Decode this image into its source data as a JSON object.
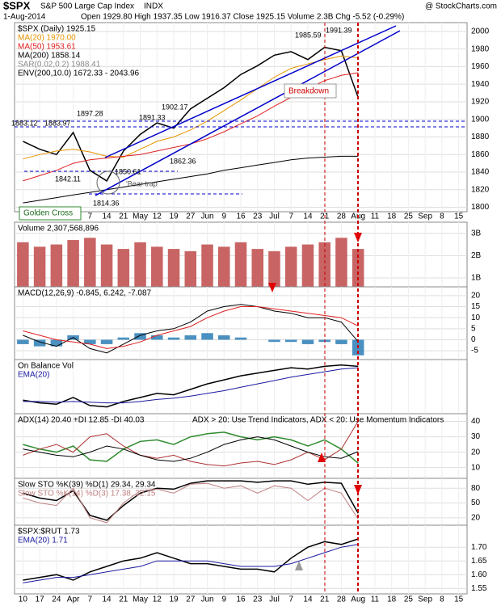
{
  "header": {
    "symbol": "$SPX",
    "name": "S&P 500 Large Cap Index",
    "exchange": "INDX",
    "brand": "@ StockCharts.com",
    "date": "1-Aug-2014",
    "quote": "Open 1929.80  High 1937.35  Low 1916.37  Close 1925.15  Volume 2.3B  Chg -5.52 (-0.29%)"
  },
  "chart_data": [
    {
      "type": "line",
      "categories": [
        "10",
        "17",
        "24",
        "Apr",
        "7",
        "14",
        "21",
        "May",
        "12",
        "19",
        "27",
        "Jun",
        "9",
        "16",
        "23",
        "Jul",
        "7",
        "14",
        "21",
        "28",
        "Aug",
        "11",
        "18",
        "25",
        "Sep",
        "8",
        "15"
      ],
      "ylim": [
        1795,
        2010
      ],
      "yticks": [
        1800,
        1820,
        1840,
        1860,
        1880,
        1900,
        1920,
        1940,
        1960,
        1980,
        2000
      ],
      "grid": true,
      "series": [
        {
          "name": "$SPX (Daily) 1925.15",
          "color": "#000000",
          "values": [
            1875,
            1866,
            1860,
            1885,
            1842,
            1830,
            1864,
            1883,
            1896,
            1890,
            1912,
            1924,
            1936,
            1951,
            1961,
            1973,
            1977,
            1968,
            1982,
            1978,
            1925,
            null,
            null,
            null,
            null,
            null,
            null
          ]
        },
        {
          "name": "MA(20) 1970.00",
          "color": "#e69500",
          "values": [
            1855,
            1860,
            1864,
            1866,
            1863,
            1858,
            1857,
            1866,
            1875,
            1880,
            1888,
            1898,
            1910,
            1922,
            1935,
            1948,
            1958,
            1963,
            1968,
            1972,
            1970,
            null,
            null,
            null,
            null,
            null,
            null
          ]
        },
        {
          "name": "MA(50) 1953.61",
          "color": "#e02020",
          "values": [
            1830,
            1836,
            1842,
            1850,
            1854,
            1856,
            1858,
            1860,
            1864,
            1868,
            1872,
            1878,
            1886,
            1895,
            1904,
            1915,
            1925,
            1935,
            1944,
            1950,
            1953,
            null,
            null,
            null,
            null,
            null,
            null
          ]
        },
        {
          "name": "MA(200) 1858.14",
          "color": "#000000",
          "values": [
            1805,
            1808,
            1811,
            1814,
            1817,
            1820,
            1823,
            1826,
            1829,
            1832,
            1835,
            1838,
            1842,
            1845,
            1848,
            1851,
            1854,
            1856,
            1857,
            1858,
            1858,
            null,
            null,
            null,
            null,
            null,
            null
          ]
        }
      ],
      "overlays": [
        {
          "name": "SAR(0.02,0.2) 1988.41",
          "color": "#888888"
        },
        {
          "name": "ENV(200,10.0) 1672.33 - 2043.96",
          "color": "#000000"
        }
      ],
      "annotations": [
        "1985.59",
        "1991.39",
        "1897.28",
        "1902.17",
        "1891.33",
        "1883.12",
        "1883.97",
        "1842.11",
        "1850.61",
        "1862.36",
        "1814.36",
        "Breakdown",
        "'Bear trap'",
        "Golden Cross"
      ]
    },
    {
      "type": "bar",
      "title": "Volume 2,307,568,896",
      "ylim": [
        0.6,
        3.5
      ],
      "yticks": [
        {
          "value": 1,
          "label": "1B"
        },
        {
          "value": 2,
          "label": "2B"
        },
        {
          "value": 3,
          "label": "3B"
        }
      ],
      "grid": true,
      "series": [
        {
          "color": "#c86464",
          "kind": "bar",
          "values": [
            2.6,
            2.4,
            2.5,
            2.7,
            2.8,
            2.5,
            2.3,
            2.6,
            2.4,
            2.3,
            2.2,
            2.5,
            2.4,
            2.6,
            2.3,
            2.2,
            2.4,
            2.5,
            2.6,
            2.8,
            2.3,
            null,
            null,
            null,
            null,
            null,
            null
          ]
        }
      ]
    },
    {
      "type": "line",
      "title": "MACD(12,26,9) -0.845, 6.242, -7.087",
      "ylim": [
        -9,
        24
      ],
      "yticks": [
        -5,
        0,
        5,
        10,
        15,
        20
      ],
      "grid": true,
      "series": [
        {
          "color": "#4a90c0",
          "kind": "bar",
          "values": [
            -2,
            -3,
            -3,
            2,
            -2,
            -2,
            1,
            3,
            2,
            1,
            2,
            3,
            2,
            1,
            0,
            -1,
            -1,
            -2,
            -1,
            -2,
            -7.087,
            null,
            null,
            null,
            null,
            null,
            null
          ]
        },
        {
          "color": "#000000",
          "values": [
            2,
            -1,
            -3,
            1,
            -4,
            -6,
            -2,
            2,
            4,
            5,
            8,
            13,
            15,
            16,
            15,
            13,
            12,
            10,
            10,
            8,
            -0.845,
            null,
            null,
            null,
            null,
            null,
            null
          ]
        },
        {
          "color": "#e02020",
          "values": [
            4,
            2,
            0,
            -1,
            -2,
            -4,
            -3,
            -1,
            2,
            4,
            6,
            10,
            13,
            15,
            15,
            14,
            13,
            12,
            11,
            10,
            6.242,
            null,
            null,
            null,
            null,
            null,
            null
          ]
        }
      ]
    },
    {
      "type": "line",
      "ylim": [
        0,
        40
      ],
      "yticks": [],
      "grid": false,
      "series": [
        {
          "name": "On Balance Vol",
          "color": "#000000",
          "values": [
            10,
            8,
            7,
            12,
            6,
            5,
            9,
            12,
            15,
            14,
            18,
            22,
            25,
            28,
            30,
            32,
            34,
            33,
            35,
            36,
            35,
            null,
            null,
            null,
            null,
            null,
            null
          ]
        },
        {
          "name": "EMA(20)",
          "color": "#1a1aa0",
          "values": [
            9,
            9,
            8.5,
            9,
            8.5,
            8,
            8,
            9,
            10.5,
            11.5,
            13,
            15,
            17,
            19.5,
            22,
            24.5,
            27,
            29,
            31,
            33,
            34,
            null,
            null,
            null,
            null,
            null,
            null
          ]
        }
      ]
    },
    {
      "type": "line",
      "title": "ADX(14) 20.40  +DI 12.85  -DI 40.03",
      "note": "ADX > 20: Use Trend Indicators, ADX < 20: Use Momentum Indicators",
      "ylim": [
        3,
        45
      ],
      "yticks": [
        10,
        20,
        30,
        40
      ],
      "grid": true,
      "series": [
        {
          "color": "#2e8b2e",
          "values": [
            25,
            22,
            20,
            24,
            15,
            14,
            22,
            27,
            28,
            25,
            30,
            32,
            33,
            30,
            28,
            30,
            28,
            24,
            28,
            22,
            12.85,
            null,
            null,
            null,
            null,
            null,
            null
          ]
        },
        {
          "color": "#b03030",
          "values": [
            18,
            22,
            25,
            20,
            30,
            32,
            24,
            18,
            16,
            18,
            14,
            12,
            11,
            13,
            14,
            12,
            15,
            20,
            15,
            22,
            40.03,
            null,
            null,
            null,
            null,
            null,
            null
          ]
        },
        {
          "color": "#000000",
          "values": [
            22,
            20,
            18,
            17,
            20,
            24,
            22,
            18,
            15,
            14,
            16,
            20,
            25,
            28,
            30,
            28,
            24,
            20,
            17,
            16,
            20.4,
            null,
            null,
            null,
            null,
            null,
            null
          ]
        }
      ]
    },
    {
      "type": "line",
      "ylim": [
        5,
        100
      ],
      "yticks": [
        20,
        50,
        80
      ],
      "grid": true,
      "series": [
        {
          "name": "Slow STO %K(39) %D(1) 29.34, 29.34",
          "color": "#000000",
          "values": [
            70,
            60,
            55,
            75,
            25,
            15,
            45,
            70,
            80,
            78,
            90,
            95,
            95,
            95,
            92,
            95,
            95,
            88,
            92,
            90,
            29.34,
            null,
            null,
            null,
            null,
            null,
            null
          ]
        },
        {
          "name": "Slow STO %K(14) %D(3) 17.38, 32.15",
          "color": "#c08080",
          "values": [
            60,
            50,
            45,
            80,
            20,
            10,
            50,
            75,
            78,
            70,
            88,
            90,
            80,
            85,
            70,
            85,
            80,
            55,
            80,
            70,
            17.38,
            null,
            null,
            null,
            null,
            null,
            null
          ]
        }
      ]
    },
    {
      "type": "line",
      "ylim": [
        1.53,
        1.78
      ],
      "yticks": [
        1.55,
        {
          "value": 1.6,
          "label": "1.60"
        },
        1.65,
        {
          "value": 1.7,
          "label": "1.70"
        }
      ],
      "grid": true,
      "series": [
        {
          "name": "$SPX:$RUT 1.73",
          "color": "#000000",
          "values": [
            1.58,
            1.59,
            1.6,
            1.58,
            1.61,
            1.63,
            1.65,
            1.66,
            1.68,
            1.66,
            1.64,
            1.64,
            1.63,
            1.62,
            1.62,
            1.61,
            1.66,
            1.7,
            1.72,
            1.71,
            1.73,
            null,
            null,
            null,
            null,
            null,
            null
          ]
        },
        {
          "name": "EMA(20) 1.71",
          "color": "#1a1aa0",
          "values": [
            1.57,
            1.58,
            1.59,
            1.59,
            1.6,
            1.61,
            1.62,
            1.63,
            1.65,
            1.65,
            1.65,
            1.65,
            1.64,
            1.63,
            1.63,
            1.63,
            1.64,
            1.66,
            1.68,
            1.7,
            1.71,
            null,
            null,
            null,
            null,
            null,
            null
          ]
        }
      ]
    }
  ]
}
